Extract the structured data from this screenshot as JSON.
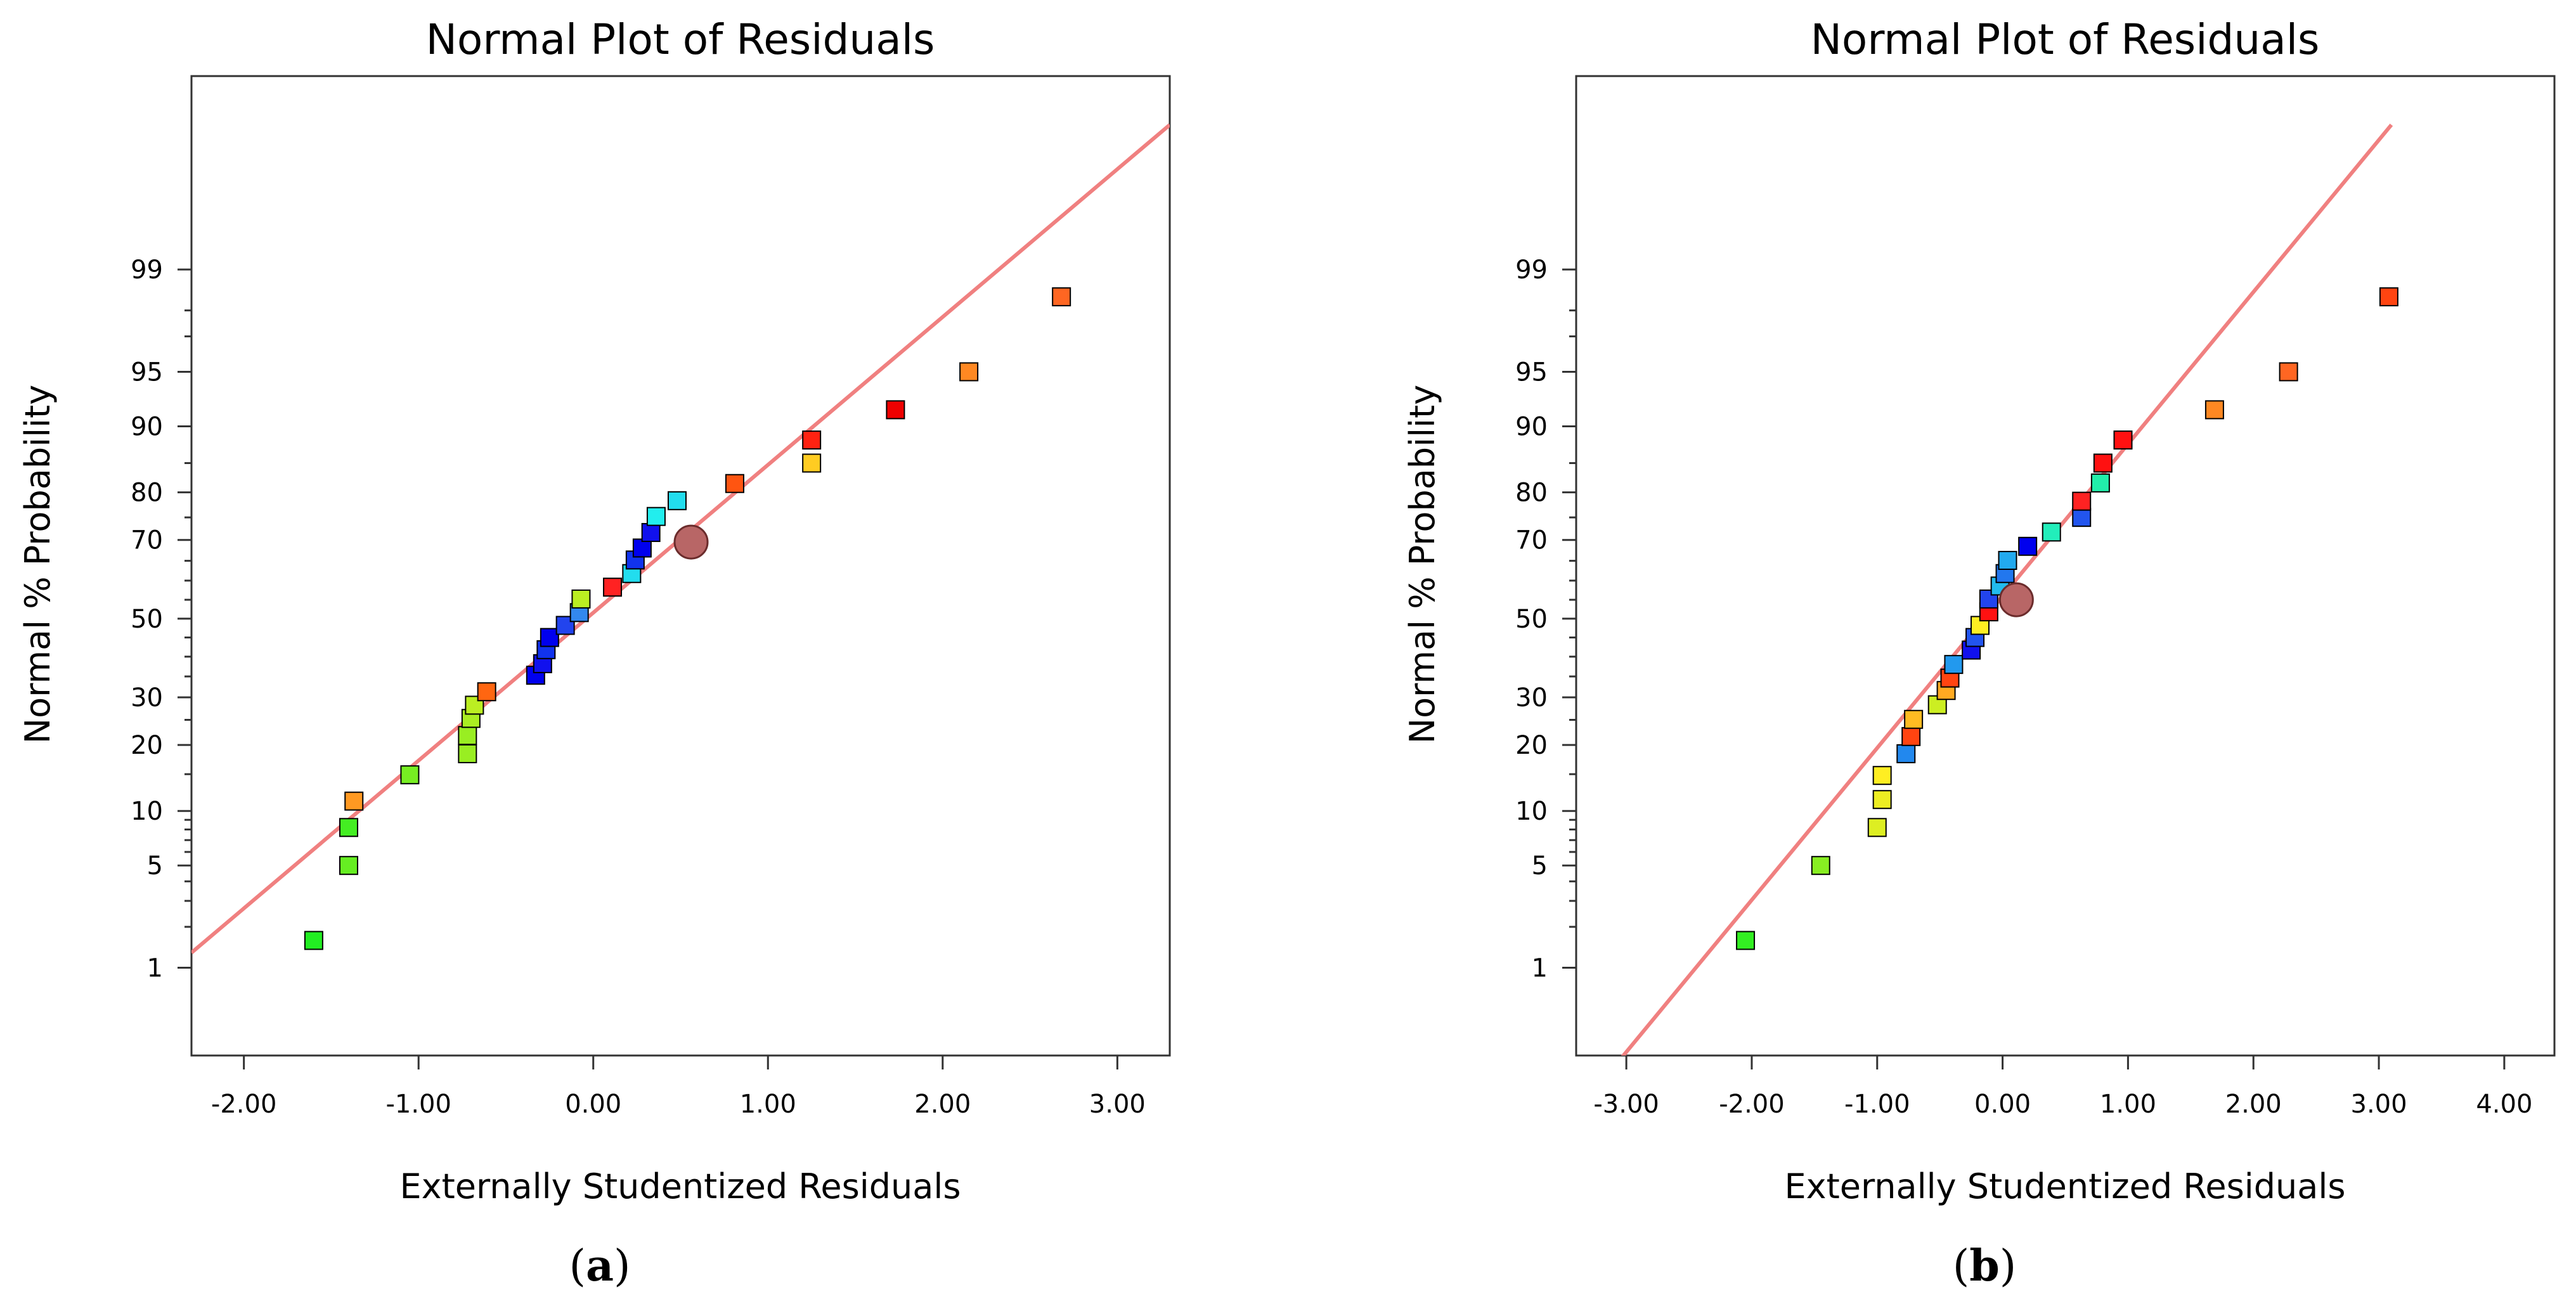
{
  "chart_data": [
    {
      "type": "scatter",
      "panel_label": "a",
      "title": "Normal Plot of Residuals",
      "xlabel": "Externally Studentized Residuals",
      "ylabel": "Normal % Probability",
      "xlim": [
        -2.3,
        3.3
      ],
      "x_ticks": [
        -2.0,
        -1.0,
        0.0,
        1.0,
        2.0,
        3.0
      ],
      "x_tick_labels": [
        "-2.00",
        "-1.00",
        "0.00",
        "1.00",
        "2.00",
        "3.00"
      ],
      "y_scale": "normal-probability",
      "y_ticks": [
        1,
        5,
        10,
        20,
        30,
        50,
        70,
        80,
        90,
        95,
        99
      ],
      "y_tick_labels": [
        "1",
        "5",
        "10",
        "20",
        "30",
        "50",
        "70",
        "80",
        "90",
        "95",
        "99"
      ],
      "fit_line": {
        "x": [
          -2.3,
          3.3
        ],
        "y_percent": [
          1.3,
          99.95
        ]
      },
      "points": [
        {
          "x": -1.6,
          "y": 1.6,
          "color": "#22ee22"
        },
        {
          "x": -1.4,
          "y": 5.0,
          "color": "#66ee22"
        },
        {
          "x": -1.4,
          "y": 8.2,
          "color": "#44ee22"
        },
        {
          "x": -1.37,
          "y": 11.2,
          "color": "#ff9922"
        },
        {
          "x": -1.05,
          "y": 14.9,
          "color": "#77ee22"
        },
        {
          "x": -0.72,
          "y": 18.4,
          "color": "#99ee22"
        },
        {
          "x": -0.72,
          "y": 21.8,
          "color": "#99ee22"
        },
        {
          "x": -0.7,
          "y": 25.3,
          "color": "#aaee22"
        },
        {
          "x": -0.68,
          "y": 28.2,
          "color": "#bbee22"
        },
        {
          "x": -0.61,
          "y": 31.3,
          "color": "#ff6611"
        },
        {
          "x": -0.33,
          "y": 35.3,
          "color": "#0000ee"
        },
        {
          "x": -0.29,
          "y": 38.2,
          "color": "#1111ee"
        },
        {
          "x": -0.27,
          "y": 41.8,
          "color": "#1133ee"
        },
        {
          "x": -0.25,
          "y": 45.0,
          "color": "#0000ee"
        },
        {
          "x": -0.16,
          "y": 48.2,
          "color": "#2244ee"
        },
        {
          "x": -0.08,
          "y": 51.6,
          "color": "#3388ee"
        },
        {
          "x": -0.07,
          "y": 55.2,
          "color": "#bbee22"
        },
        {
          "x": 0.11,
          "y": 58.3,
          "color": "#ff2222"
        },
        {
          "x": 0.22,
          "y": 61.8,
          "color": "#22ddee"
        },
        {
          "x": 0.24,
          "y": 65.2,
          "color": "#1133ee"
        },
        {
          "x": 0.28,
          "y": 68.1,
          "color": "#0000ee"
        },
        {
          "x": 0.33,
          "y": 71.7,
          "color": "#1111ee"
        },
        {
          "x": 0.36,
          "y": 75.2,
          "color": "#22eeee"
        },
        {
          "x": 0.48,
          "y": 78.4,
          "color": "#22ddee"
        },
        {
          "x": 0.81,
          "y": 81.6,
          "color": "#ff5511"
        },
        {
          "x": 1.25,
          "y": 85.0,
          "color": "#ffcc22"
        },
        {
          "x": 1.25,
          "y": 88.3,
          "color": "#ff2211"
        },
        {
          "x": 1.73,
          "y": 91.8,
          "color": "#ee0000"
        },
        {
          "x": 2.15,
          "y": 95.0,
          "color": "#ff8822"
        },
        {
          "x": 2.68,
          "y": 98.4,
          "color": "#ff6622"
        }
      ],
      "highlight_point": {
        "x": 0.56,
        "y": 69.5,
        "color": "#b86666"
      }
    },
    {
      "type": "scatter",
      "panel_label": "b",
      "title": "Normal Plot of Residuals",
      "xlabel": "Externally Studentized Residuals",
      "ylabel": "Normal % Probability",
      "xlim": [
        -3.4,
        4.4
      ],
      "x_ticks": [
        -3.0,
        -2.0,
        -1.0,
        0.0,
        1.0,
        2.0,
        3.0,
        4.0
      ],
      "x_tick_labels": [
        "-3.00",
        "-2.00",
        "-1.00",
        "0.00",
        "1.00",
        "2.00",
        "3.00",
        "4.00"
      ],
      "y_scale": "normal-probability",
      "y_ticks": [
        1,
        5,
        10,
        20,
        30,
        50,
        70,
        80,
        90,
        95,
        99
      ],
      "y_tick_labels": [
        "1",
        "5",
        "10",
        "20",
        "30",
        "50",
        "70",
        "80",
        "90",
        "95",
        "99"
      ],
      "fit_line": {
        "x": [
          -3.2,
          3.1
        ],
        "y_percent": [
          0.1,
          99.95
        ]
      },
      "points": [
        {
          "x": -2.05,
          "y": 1.6,
          "color": "#33ee22"
        },
        {
          "x": -1.45,
          "y": 5.0,
          "color": "#88ee22"
        },
        {
          "x": -1.0,
          "y": 8.2,
          "color": "#ddee22"
        },
        {
          "x": -0.96,
          "y": 11.4,
          "color": "#eeee22"
        },
        {
          "x": -0.96,
          "y": 14.8,
          "color": "#ffee22"
        },
        {
          "x": -0.77,
          "y": 18.4,
          "color": "#2288ee"
        },
        {
          "x": -0.73,
          "y": 21.6,
          "color": "#ff4411"
        },
        {
          "x": -0.71,
          "y": 25.1,
          "color": "#ffbb22"
        },
        {
          "x": -0.52,
          "y": 28.3,
          "color": "#ccee22"
        },
        {
          "x": -0.45,
          "y": 31.6,
          "color": "#ffaa22"
        },
        {
          "x": -0.42,
          "y": 34.6,
          "color": "#ff4411"
        },
        {
          "x": -0.39,
          "y": 38.0,
          "color": "#2299ee"
        },
        {
          "x": -0.25,
          "y": 41.7,
          "color": "#1111ee"
        },
        {
          "x": -0.22,
          "y": 45.0,
          "color": "#2255ee"
        },
        {
          "x": -0.18,
          "y": 48.2,
          "color": "#ffee22"
        },
        {
          "x": -0.11,
          "y": 51.8,
          "color": "#ff1111"
        },
        {
          "x": -0.11,
          "y": 55.2,
          "color": "#2244ee"
        },
        {
          "x": -0.02,
          "y": 58.6,
          "color": "#22bbee"
        },
        {
          "x": 0.02,
          "y": 61.8,
          "color": "#2277ee"
        },
        {
          "x": 0.04,
          "y": 65.1,
          "color": "#22aaee"
        },
        {
          "x": 0.2,
          "y": 68.5,
          "color": "#0000ee"
        },
        {
          "x": 0.39,
          "y": 71.8,
          "color": "#22eebb"
        },
        {
          "x": 0.63,
          "y": 75.0,
          "color": "#2255ee"
        },
        {
          "x": 0.63,
          "y": 78.3,
          "color": "#ff2222"
        },
        {
          "x": 0.78,
          "y": 81.7,
          "color": "#22eeaa"
        },
        {
          "x": 0.8,
          "y": 85.0,
          "color": "#ff1111"
        },
        {
          "x": 0.96,
          "y": 88.3,
          "color": "#ff1111"
        },
        {
          "x": 1.69,
          "y": 91.8,
          "color": "#ff8822"
        },
        {
          "x": 2.28,
          "y": 95.0,
          "color": "#ff6622"
        },
        {
          "x": 3.08,
          "y": 98.4,
          "color": "#ff4411"
        }
      ],
      "highlight_point": {
        "x": 0.11,
        "y": 55.0,
        "color": "#b86666"
      }
    }
  ]
}
